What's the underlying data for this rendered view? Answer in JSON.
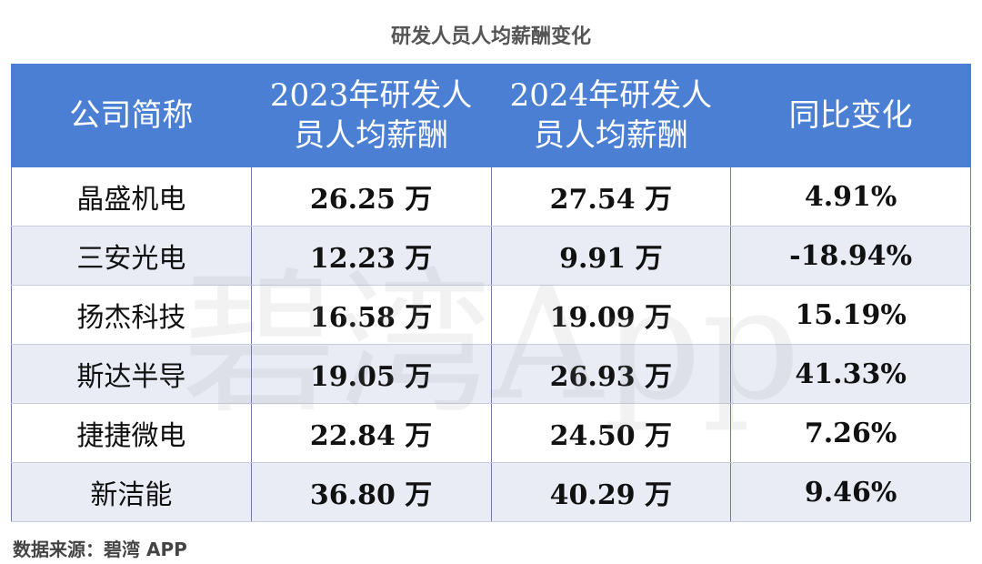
{
  "title": "研发人员人均薪酬变化",
  "watermark": "碧湾App",
  "table": {
    "header": [
      [
        "公司简称"
      ],
      [
        "2023年研发人",
        "员人均薪酬"
      ],
      [
        "2024年研发人",
        "员人均薪酬"
      ],
      [
        "同比变化"
      ]
    ],
    "rows": [
      [
        "晶盛机电",
        "26.25 万",
        "27.54 万",
        "4.91%"
      ],
      [
        "三安光电",
        "12.23 万",
        "9.91 万",
        "-18.94%"
      ],
      [
        "扬杰科技",
        "16.58 万",
        "19.09 万",
        "15.19%"
      ],
      [
        "斯达半导",
        "19.05 万",
        "26.93 万",
        "41.33%"
      ],
      [
        "捷捷微电",
        "22.84 万",
        "24.50 万",
        "7.26%"
      ],
      [
        "新洁能",
        "36.80 万",
        "40.29 万",
        "9.46%"
      ]
    ]
  },
  "source": "数据来源：碧湾 APP"
}
